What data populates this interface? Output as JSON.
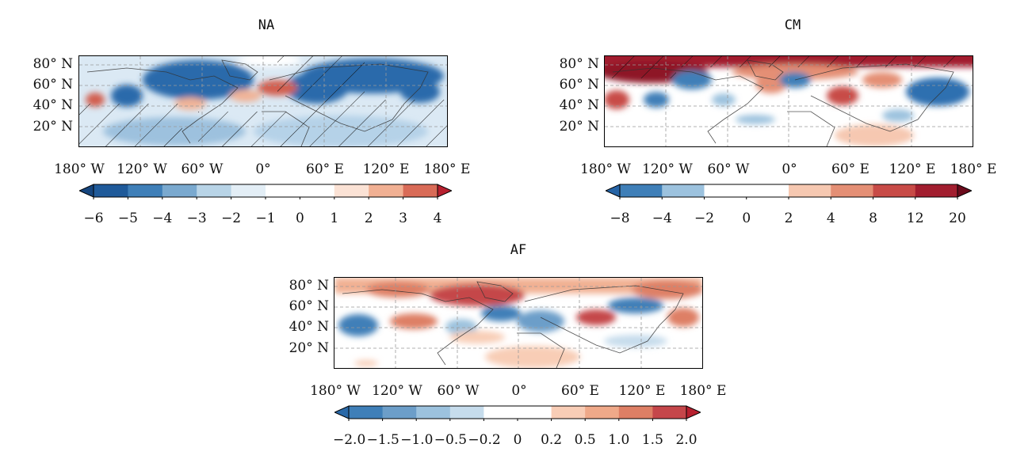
{
  "panels": [
    {
      "title": "NA",
      "lat_labels": [
        "80° N",
        "60° N",
        "40° N",
        "20° N"
      ],
      "lon_labels": [
        "180° W",
        "120° W",
        "60° W",
        "0°",
        "60° E",
        "120° E",
        "180° E"
      ],
      "colorbar": {
        "ticks": [
          "−6",
          "−5",
          "−4",
          "−3",
          "−2",
          "−1",
          "0",
          "1",
          "2",
          "3",
          "4"
        ],
        "colors": [
          "#1f5a9a",
          "#3f7fb8",
          "#7aa9cf",
          "#b8d4e7",
          "#e3eef6",
          "#ffffff",
          "#ffffff",
          "#fbe2d5",
          "#f1b093",
          "#d96b57"
        ],
        "extend_low": "#15457e",
        "extend_high": "#b7202f"
      }
    },
    {
      "title": "CM",
      "lat_labels": [
        "80° N",
        "60° N",
        "40° N",
        "20° N"
      ],
      "lon_labels": [
        "180° W",
        "120° W",
        "60° W",
        "0°",
        "60° E",
        "120° E",
        "180° E"
      ],
      "colorbar": {
        "ticks": [
          "−8",
          "−4",
          "−2",
          "0",
          "2",
          "4",
          "8",
          "12",
          "20"
        ],
        "colors": [
          "#3f7fb8",
          "#9cc2de",
          "#ffffff",
          "#ffffff",
          "#f6c8b1",
          "#e48f75",
          "#c84b47",
          "#a21e2f"
        ],
        "extend_low": "#2664a6",
        "extend_high": "#6b0b1c"
      }
    },
    {
      "title": "AF",
      "lat_labels": [
        "80° N",
        "60° N",
        "40° N",
        "20° N"
      ],
      "lon_labels": [
        "180° W",
        "120° W",
        "60° W",
        "0°",
        "60° E",
        "120° E",
        "180° E"
      ],
      "colorbar": {
        "ticks": [
          "−2.0",
          "−1.5",
          "−1.0",
          "−0.5",
          "−0.2",
          "0",
          "0.2",
          "0.5",
          "1.0",
          "1.5",
          "2.0"
        ],
        "colors": [
          "#3f7fb8",
          "#6c9ec9",
          "#9cc2de",
          "#c6dcec",
          "#ffffff",
          "#ffffff",
          "#f8cdb6",
          "#efa989",
          "#de7f65",
          "#c5464a"
        ],
        "extend_low": "#2a69a8",
        "extend_high": "#b7202f"
      }
    }
  ]
}
